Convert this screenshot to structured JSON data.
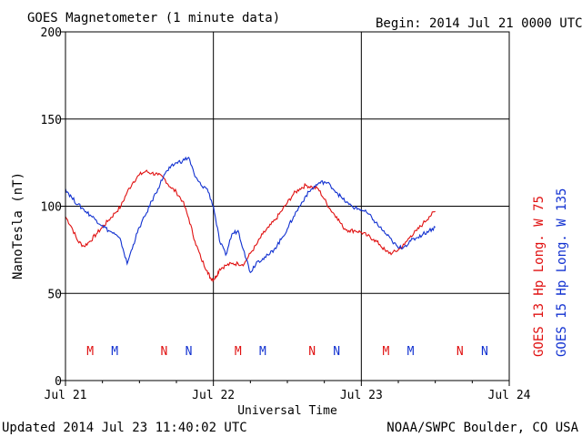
{
  "header": {
    "title": "GOES Magnetometer (1 minute data)",
    "begin_label": "Begin:",
    "begin_value": "2014 Jul 21 0000 UTC"
  },
  "footer": {
    "updated": "Updated 2014 Jul 23 11:40:02 UTC",
    "credit": "NOAA/SWPC Boulder, CO USA"
  },
  "legend": {
    "goes13": "GOES 13 Hp  Long. W 75",
    "goes15": "GOES 15 Hp  Long. W 135"
  },
  "colors": {
    "goes13": "#e01010",
    "goes15": "#1030d0",
    "axis": "#000000"
  },
  "chart_data": {
    "type": "line",
    "title": "GOES Magnetometer (1 minute data)",
    "xlabel": "Universal Time",
    "ylabel": "NanoTesla (nT)",
    "ylim": [
      0,
      200
    ],
    "yticks": [
      0,
      50,
      100,
      150,
      200
    ],
    "xlim_hours": [
      0,
      72
    ],
    "xticks": [
      {
        "hour": 0,
        "label": "Jul 21"
      },
      {
        "hour": 24,
        "label": "Jul 22"
      },
      {
        "hour": 48,
        "label": "Jul 23"
      },
      {
        "hour": 72,
        "label": "Jul 24"
      }
    ],
    "grid": true,
    "series": [
      {
        "name": "GOES 13 Hp  Long. W 75",
        "color": "#e01010",
        "x": [
          0,
          1,
          2,
          3,
          4,
          5,
          6,
          7,
          8,
          9,
          10,
          11,
          12,
          13,
          14,
          15,
          16,
          17,
          18,
          19,
          20,
          21,
          22,
          23,
          23.5,
          24,
          24.5,
          25,
          26,
          27,
          28,
          29,
          30,
          31,
          32,
          33,
          34,
          35,
          36,
          37,
          38,
          39,
          40,
          41,
          42,
          43,
          44,
          45,
          46,
          47,
          48,
          49,
          50,
          51,
          52,
          53,
          54,
          55,
          56,
          57,
          58,
          59,
          60
        ],
        "y": [
          94,
          88,
          80,
          77,
          80,
          84,
          88,
          92,
          96,
          100,
          108,
          114,
          118,
          120,
          119,
          118,
          116,
          111,
          108,
          103,
          93,
          80,
          70,
          63,
          59,
          58,
          60,
          64,
          66,
          67,
          67,
          67,
          73,
          78,
          84,
          88,
          92,
          97,
          102,
          107,
          110,
          112,
          111,
          110,
          104,
          98,
          94,
          88,
          86,
          86,
          85,
          83,
          81,
          78,
          74,
          73,
          75,
          78,
          83,
          86,
          90,
          94,
          97
        ]
      },
      {
        "name": "GOES 15 Hp  Long. W 135",
        "color": "#1030d0",
        "x": [
          0,
          1,
          2,
          3,
          4,
          5,
          6,
          7,
          8,
          9,
          10,
          11,
          12,
          13,
          14,
          15,
          16,
          17,
          18,
          19,
          20,
          21,
          22,
          23,
          24,
          25,
          26,
          27,
          28,
          29,
          30,
          31,
          32,
          33,
          34,
          35,
          36,
          37,
          38,
          39,
          40,
          41,
          42,
          43,
          44,
          45,
          46,
          47,
          48,
          49,
          50,
          51,
          52,
          53,
          54,
          55,
          56,
          57,
          58,
          59,
          60
        ],
        "y": [
          110,
          105,
          101,
          98,
          95,
          92,
          89,
          86,
          84,
          80,
          67,
          78,
          88,
          95,
          103,
          110,
          118,
          122,
          125,
          126,
          128,
          117,
          112,
          110,
          100,
          80,
          72,
          84,
          86,
          74,
          62,
          68,
          70,
          72,
          76,
          81,
          87,
          94,
          100,
          106,
          110,
          113,
          114,
          112,
          108,
          104,
          101,
          99,
          98,
          96,
          92,
          88,
          84,
          80,
          76,
          77,
          80,
          82,
          84,
          86,
          88
        ]
      }
    ],
    "markers": [
      {
        "hour": 4,
        "label": "M",
        "series": "goes13"
      },
      {
        "hour": 8,
        "label": "M",
        "series": "goes15"
      },
      {
        "hour": 16,
        "label": "N",
        "series": "goes13"
      },
      {
        "hour": 20,
        "label": "N",
        "series": "goes15"
      },
      {
        "hour": 28,
        "label": "M",
        "series": "goes13"
      },
      {
        "hour": 32,
        "label": "M",
        "series": "goes15"
      },
      {
        "hour": 40,
        "label": "N",
        "series": "goes13"
      },
      {
        "hour": 44,
        "label": "N",
        "series": "goes15"
      },
      {
        "hour": 52,
        "label": "M",
        "series": "goes13"
      },
      {
        "hour": 56,
        "label": "M",
        "series": "goes15"
      },
      {
        "hour": 64,
        "label": "N",
        "series": "goes13"
      },
      {
        "hour": 68,
        "label": "N",
        "series": "goes15"
      }
    ]
  }
}
